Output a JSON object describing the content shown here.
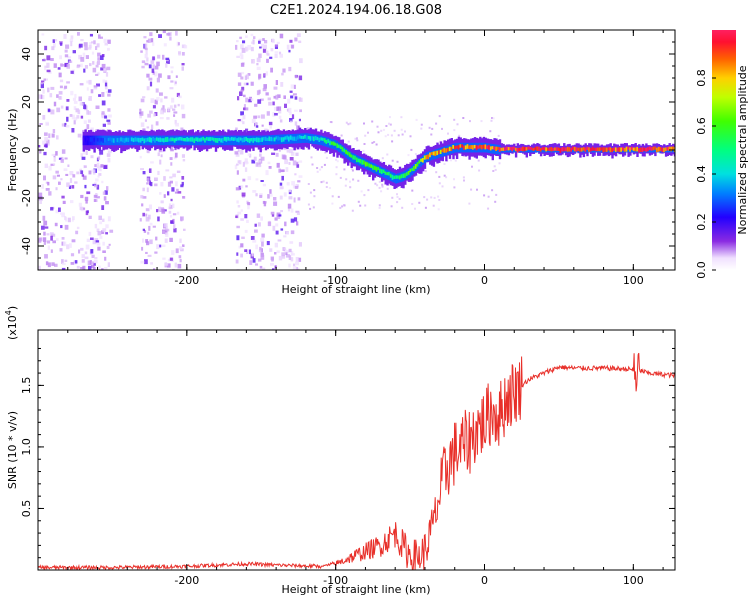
{
  "title": "C2E1.2024.194.06.18.G08",
  "chart_data": [
    {
      "type": "heatmap",
      "xlabel": "Height of straight line (km)",
      "ylabel": "Frequency (Hz)",
      "xlim": [
        -300,
        128
      ],
      "ylim": [
        -50,
        50
      ],
      "x_ticks": [
        -200,
        -100,
        0,
        100
      ],
      "x_tick_labels": [
        "-200",
        "-100",
        "0",
        "100"
      ],
      "y_ticks": [
        40,
        20,
        0,
        -20,
        -40
      ],
      "y_tick_labels": [
        "40",
        "20",
        "0",
        "-20",
        "-40"
      ],
      "ridge": {
        "x": [
          -270,
          -250,
          -200,
          -150,
          -120,
          -110,
          -100,
          -90,
          -80,
          -70,
          -60,
          -55,
          -50,
          -45,
          -40,
          -30,
          -20,
          -10,
          0,
          10,
          50,
          100,
          128
        ],
        "y": [
          4,
          4,
          4,
          4,
          5,
          4,
          2,
          -3,
          -6,
          -9,
          -12,
          -11,
          -9,
          -6,
          -3,
          -1,
          1,
          1,
          1,
          0,
          0,
          0,
          0
        ],
        "amplitude": [
          0.2,
          0.35,
          0.45,
          0.4,
          0.4,
          0.45,
          0.6,
          0.55,
          0.6,
          0.55,
          0.5,
          0.55,
          0.6,
          0.7,
          0.8,
          0.85,
          0.9,
          0.9,
          0.95,
          0.95,
          0.95,
          0.95,
          0.95
        ]
      },
      "noise_bands_x": [
        [
          -300,
          -252
        ],
        [
          -232,
          -202
        ],
        [
          -168,
          -124
        ]
      ],
      "colorbar": {
        "label": "Normalized spectral amplitude",
        "range": [
          0,
          1
        ],
        "ticks": [
          0.0,
          0.2,
          0.4,
          0.6,
          0.8
        ],
        "tick_labels": [
          "0.0",
          "0.2",
          "0.4",
          "0.6",
          "0.8"
        ]
      },
      "grid": false
    },
    {
      "type": "line",
      "xlabel": "Height of straight line (km)",
      "ylabel": "SNR (10 * v/v)",
      "y_scale_label": "(x10",
      "y_scale_exponent": "4",
      "xlim": [
        -300,
        128
      ],
      "ylim": [
        0,
        1.95
      ],
      "x_ticks": [
        -200,
        -100,
        0,
        100
      ],
      "x_tick_labels": [
        "-200",
        "-100",
        "0",
        "100"
      ],
      "y_ticks": [
        0.5,
        1.0,
        1.5
      ],
      "y_tick_labels": [
        "0.5",
        "1.0",
        "1.5"
      ],
      "series": [
        {
          "color": "#e8302a",
          "x": [
            -300,
            -250,
            -200,
            -160,
            -140,
            -110,
            -100,
            -90,
            -80,
            -70,
            -65,
            -60,
            -55,
            -50,
            -45,
            -40,
            -35,
            -30,
            -25,
            -20,
            -15,
            -10,
            -5,
            0,
            5,
            10,
            15,
            20,
            30,
            40,
            50,
            60,
            80,
            100,
            105,
            110,
            128
          ],
          "y": [
            0.02,
            0.02,
            0.03,
            0.05,
            0.04,
            0.03,
            0.05,
            0.1,
            0.15,
            0.2,
            0.25,
            0.3,
            0.2,
            0.12,
            0.1,
            0.15,
            0.35,
            0.6,
            0.85,
            0.95,
            1.0,
            1.05,
            1.15,
            1.2,
            1.3,
            1.25,
            1.4,
            1.45,
            1.55,
            1.6,
            1.65,
            1.64,
            1.64,
            1.63,
            1.62,
            1.6,
            1.58
          ]
        }
      ],
      "grid": false
    }
  ]
}
